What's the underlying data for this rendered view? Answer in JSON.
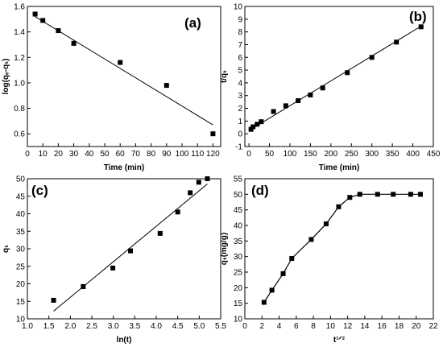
{
  "chart_data": [
    {
      "type": "scatter",
      "panel_label": "(a)",
      "xlabel": "Time (min)",
      "ylabel": "log(qₑ-qₜ)",
      "xlim": [
        0,
        125
      ],
      "ylim": [
        0.5,
        1.6
      ],
      "x_ticks": [
        "0",
        "10",
        "20",
        "30",
        "40",
        "50",
        "60",
        "70",
        "80",
        "90",
        "100",
        "110",
        "120"
      ],
      "y_ticks": [
        "0.6",
        "0.8",
        "1.0",
        "1.2",
        "1.4",
        "1.6"
      ],
      "x_tick_values": [
        0,
        10,
        20,
        30,
        40,
        50,
        60,
        70,
        80,
        90,
        100,
        110,
        120
      ],
      "y_tick_values": [
        0.6,
        0.8,
        1.0,
        1.2,
        1.4,
        1.6
      ],
      "points": [
        [
          5,
          1.54
        ],
        [
          10,
          1.49
        ],
        [
          20,
          1.41
        ],
        [
          30,
          1.31
        ],
        [
          60,
          1.16
        ],
        [
          90,
          0.98
        ],
        [
          120,
          0.6
        ]
      ],
      "fit_line": [
        [
          5,
          1.52
        ],
        [
          120,
          0.67
        ]
      ],
      "fit_type": "linear",
      "grid": false,
      "legend": false
    },
    {
      "type": "scatter",
      "panel_label": "(b)",
      "xlabel": "Time (min)",
      "ylabel": "t/qₜ",
      "xlim": [
        -10,
        450
      ],
      "ylim": [
        -1,
        10
      ],
      "x_ticks": [
        "0",
        "50",
        "100",
        "150",
        "200",
        "250",
        "300",
        "350",
        "400",
        "450"
      ],
      "y_ticks": [
        "-1",
        "0",
        "1",
        "2",
        "3",
        "4",
        "5",
        "6",
        "7",
        "8",
        "9",
        "10"
      ],
      "x_tick_values": [
        0,
        50,
        100,
        150,
        200,
        250,
        300,
        350,
        400,
        450
      ],
      "y_tick_values": [
        -1,
        0,
        1,
        2,
        3,
        4,
        5,
        6,
        7,
        8,
        9,
        10
      ],
      "points": [
        [
          5,
          0.35
        ],
        [
          10,
          0.55
        ],
        [
          20,
          0.75
        ],
        [
          30,
          0.95
        ],
        [
          60,
          1.75
        ],
        [
          90,
          2.2
        ],
        [
          120,
          2.6
        ],
        [
          150,
          3.05
        ],
        [
          180,
          3.6
        ],
        [
          240,
          4.8
        ],
        [
          300,
          6.0
        ],
        [
          360,
          7.2
        ],
        [
          420,
          8.4
        ]
      ],
      "fit_line": [
        [
          5,
          0.35
        ],
        [
          420,
          8.45
        ]
      ],
      "fit_type": "linear",
      "grid": false,
      "legend": false
    },
    {
      "type": "scatter",
      "panel_label": "(c)",
      "xlabel": "ln(t)",
      "ylabel": "qₜ",
      "xlim": [
        1.0,
        5.5
      ],
      "ylim": [
        10,
        50
      ],
      "x_ticks": [
        "1.0",
        "1.5",
        "2.0",
        "2.5",
        "3.0",
        "3.5",
        "4.0",
        "4.5",
        "5.0",
        "5.5"
      ],
      "y_ticks": [
        "10",
        "15",
        "20",
        "25",
        "30",
        "35",
        "40",
        "45",
        "50"
      ],
      "x_tick_values": [
        1.0,
        1.5,
        2.0,
        2.5,
        3.0,
        3.5,
        4.0,
        4.5,
        5.0,
        5.5
      ],
      "y_tick_values": [
        10,
        15,
        20,
        25,
        30,
        35,
        40,
        45,
        50
      ],
      "points": [
        [
          1.61,
          15.3
        ],
        [
          2.3,
          19.2
        ],
        [
          2.99,
          24.5
        ],
        [
          3.4,
          29.4
        ],
        [
          4.09,
          34.4
        ],
        [
          4.5,
          40.5
        ],
        [
          4.79,
          46
        ],
        [
          4.99,
          49
        ],
        [
          5.19,
          50
        ]
      ],
      "fit_line": [
        [
          1.61,
          12.2
        ],
        [
          5.19,
          48.5
        ]
      ],
      "fit_type": "linear",
      "grid": false,
      "legend": false
    },
    {
      "type": "line",
      "panel_label": "(d)",
      "xlabel": "t¹ᐟ²",
      "ylabel": "qₜ(mg/g)",
      "xlim": [
        0,
        22
      ],
      "ylim": [
        10,
        55
      ],
      "x_ticks": [
        "0",
        "2",
        "4",
        "6",
        "8",
        "10",
        "12",
        "14",
        "16",
        "18",
        "20",
        "22"
      ],
      "y_ticks": [
        "10",
        "15",
        "20",
        "25",
        "30",
        "35",
        "40",
        "45",
        "50",
        "55"
      ],
      "x_tick_values": [
        0,
        2,
        4,
        6,
        8,
        10,
        12,
        14,
        16,
        18,
        20,
        22
      ],
      "y_tick_values": [
        10,
        15,
        20,
        25,
        30,
        35,
        40,
        45,
        50,
        55
      ],
      "points": [
        [
          2.24,
          15.3
        ],
        [
          3.16,
          19.2
        ],
        [
          4.47,
          24.5
        ],
        [
          5.48,
          29.4
        ],
        [
          7.75,
          35.5
        ],
        [
          9.49,
          40.5
        ],
        [
          10.95,
          46
        ],
        [
          12.25,
          49
        ],
        [
          13.42,
          50
        ],
        [
          15.49,
          50
        ],
        [
          17.32,
          50
        ],
        [
          19.36,
          50
        ],
        [
          20.49,
          50
        ]
      ],
      "connected": true,
      "grid": false,
      "legend": false
    }
  ]
}
